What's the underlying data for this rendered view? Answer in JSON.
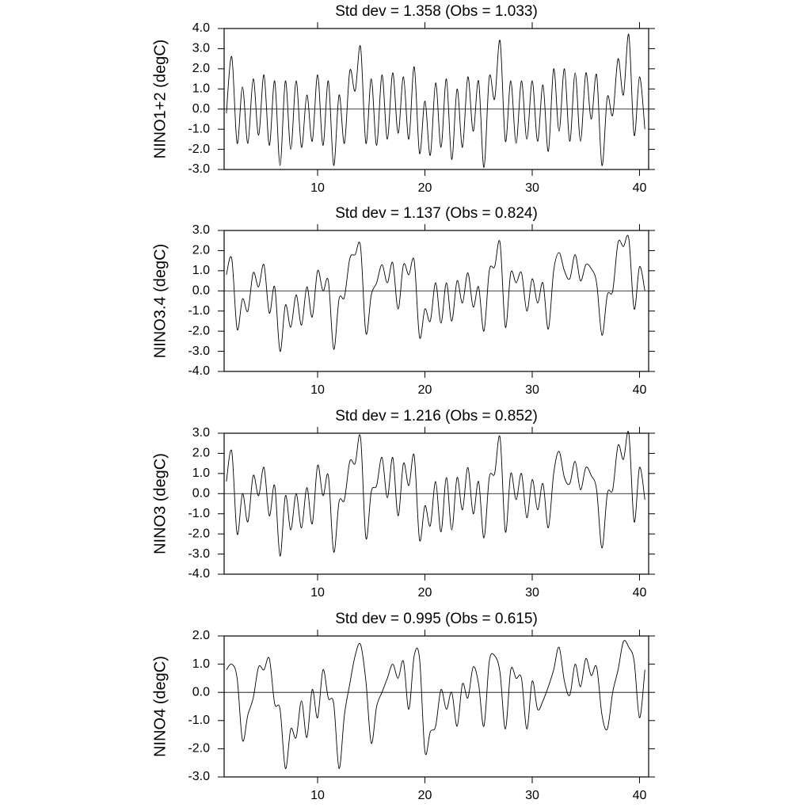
{
  "chart_data": [
    {
      "type": "line",
      "title": "Std dev = 1.358 (Obs = 1.033)",
      "y_label": "NINO1+2 (degC)",
      "color": "#000000",
      "x": [
        1.5,
        2,
        2.5,
        3,
        3.5,
        4,
        4.5,
        5,
        5.5,
        6,
        6.5,
        7,
        7.5,
        8,
        8.5,
        9,
        9.5,
        10,
        10.5,
        11,
        11.5,
        12,
        12.5,
        13,
        13.5,
        14,
        14.5,
        15,
        15.5,
        16,
        16.5,
        17,
        17.5,
        18,
        18.5,
        19,
        19.5,
        20,
        20.5,
        21,
        21.5,
        22,
        22.5,
        23,
        23.5,
        24,
        24.5,
        25,
        25.5,
        26,
        26.5,
        27,
        27.5,
        28,
        28.5,
        29,
        29.5,
        30,
        30.5,
        31,
        31.5,
        32,
        32.5,
        33,
        33.5,
        34,
        34.5,
        35,
        35.5,
        36,
        36.5,
        37,
        37.5,
        38,
        38.5,
        39,
        39.5,
        40,
        40.5
      ],
      "values": [
        -0.2,
        2.6,
        -1.7,
        1.1,
        -1.7,
        1.5,
        -1.3,
        1.7,
        -1.8,
        1.4,
        -2.8,
        1.4,
        -2.0,
        1.4,
        -1.9,
        0.7,
        -1.6,
        1.7,
        -1.8,
        1.4,
        -2.8,
        0.7,
        -1.7,
        1.9,
        0.9,
        3.1,
        -1.7,
        1.5,
        -1.8,
        1.7,
        -1.5,
        1.8,
        -1.2,
        1.6,
        -1.5,
        2.1,
        -2.2,
        0.4,
        -2.3,
        1.3,
        -1.9,
        1.5,
        -2.5,
        1.0,
        -1.9,
        1.6,
        -1.1,
        1.4,
        -2.9,
        1.6,
        0.5,
        3.4,
        -1.6,
        1.4,
        -1.7,
        1.4,
        -1.5,
        1.4,
        -1.6,
        1.2,
        -2.1,
        2.0,
        -1.1,
        2.0,
        -1.6,
        1.8,
        -1.6,
        1.8,
        -0.5,
        1.7,
        -2.8,
        0.6,
        -0.3,
        2.5,
        0.7,
        3.7,
        -1.3,
        1.6,
        -1.0
      ],
      "xlim": [
        1.29,
        40.85
      ],
      "xticks": [
        10,
        20,
        30,
        40
      ],
      "ylim": [
        -3,
        4
      ],
      "yticks": [
        {
          "value": 4,
          "label": "4.0"
        },
        {
          "value": 3,
          "label": "3.0"
        },
        {
          "value": 2,
          "label": "2.0"
        },
        {
          "value": 1,
          "label": "1.0"
        },
        {
          "value": 0,
          "label": "0.0"
        },
        {
          "value": -1,
          "label": "-1.0"
        },
        {
          "value": -2,
          "label": "-2.0"
        },
        {
          "value": -3,
          "label": "-3.0"
        }
      ],
      "reference_line": 0
    },
    {
      "type": "line",
      "title": "Std dev = 1.137 (Obs = 0.824)",
      "y_label": "NINO3.4 (degC)",
      "color": "#000000",
      "x": [
        1.5,
        2,
        2.5,
        3,
        3.5,
        4,
        4.5,
        5,
        5.5,
        6,
        6.5,
        7,
        7.5,
        8,
        8.5,
        9,
        9.5,
        10,
        10.5,
        11,
        11.5,
        12,
        12.5,
        13,
        13.5,
        14,
        14.5,
        15,
        15.5,
        16,
        16.5,
        17,
        17.5,
        18,
        18.5,
        19,
        19.5,
        20,
        20.5,
        21,
        21.5,
        22,
        22.5,
        23,
        23.5,
        24,
        24.5,
        25,
        25.5,
        26,
        26.5,
        27,
        27.5,
        28,
        28.5,
        29,
        29.5,
        30,
        30.5,
        31,
        31.5,
        32,
        32.5,
        33,
        33.5,
        34,
        34.5,
        35,
        35.5,
        36,
        36.5,
        37,
        37.5,
        38,
        38.5,
        39,
        39.5,
        40,
        40.5
      ],
      "values": [
        0.8,
        1.6,
        -1.9,
        -0.4,
        -1.0,
        0.9,
        0.2,
        1.3,
        -1.1,
        0.2,
        -3.0,
        -0.7,
        -1.8,
        -0.2,
        -1.7,
        0.2,
        -1.3,
        1.0,
        0.0,
        0.5,
        -2.9,
        -0.4,
        -0.3,
        1.6,
        1.8,
        2.2,
        -2.1,
        -0.2,
        0.4,
        1.3,
        0.4,
        1.4,
        -0.9,
        1.3,
        0.8,
        1.5,
        -2.3,
        -0.9,
        -1.5,
        0.4,
        -1.6,
        0.4,
        -1.5,
        0.5,
        -0.6,
        0.9,
        -0.8,
        0.2,
        -2.0,
        1.0,
        1.2,
        2.4,
        -1.8,
        0.9,
        0.4,
        0.9,
        -1.0,
        0.6,
        -0.6,
        0.4,
        -1.9,
        1.0,
        1.9,
        1.0,
        0.6,
        1.8,
        0.5,
        1.3,
        1.1,
        0.4,
        -2.2,
        -0.2,
        0.0,
        2.4,
        2.2,
        2.6,
        -0.9,
        1.2,
        0.0
      ],
      "xlim": [
        1.29,
        40.85
      ],
      "xticks": [
        10,
        20,
        30,
        40
      ],
      "ylim": [
        -4,
        3
      ],
      "yticks": [
        {
          "value": 3,
          "label": "3.0"
        },
        {
          "value": 2,
          "label": "2.0"
        },
        {
          "value": 1,
          "label": "1.0"
        },
        {
          "value": 0,
          "label": "0.0"
        },
        {
          "value": -1,
          "label": "-1.0"
        },
        {
          "value": -2,
          "label": "-2.0"
        },
        {
          "value": -3,
          "label": "-3.0"
        },
        {
          "value": -4,
          "label": "-4.0"
        }
      ],
      "reference_line": 0
    },
    {
      "type": "line",
      "title": "Std dev = 1.216 (Obs = 0.852)",
      "y_label": "NINO3 (degC)",
      "color": "#000000",
      "x": [
        1.5,
        2,
        2.5,
        3,
        3.5,
        4,
        4.5,
        5,
        5.5,
        6,
        6.5,
        7,
        7.5,
        8,
        8.5,
        9,
        9.5,
        10,
        10.5,
        11,
        11.5,
        12,
        12.5,
        13,
        13.5,
        14,
        14.5,
        15,
        15.5,
        16,
        16.5,
        17,
        17.5,
        18,
        18.5,
        19,
        19.5,
        20,
        20.5,
        21,
        21.5,
        22,
        22.5,
        23,
        23.5,
        24,
        24.5,
        25,
        25.5,
        26,
        26.5,
        27,
        27.5,
        28,
        28.5,
        29,
        29.5,
        30,
        30.5,
        31,
        31.5,
        32,
        32.5,
        33,
        33.5,
        34,
        34.5,
        35,
        35.5,
        36,
        36.5,
        37,
        37.5,
        38,
        38.5,
        39,
        39.5,
        40,
        40.5
      ],
      "values": [
        0.6,
        2.1,
        -2.0,
        0.0,
        -1.4,
        0.9,
        -0.1,
        1.3,
        -1.1,
        0.4,
        -3.1,
        -0.1,
        -1.8,
        0.0,
        -1.7,
        0.3,
        -1.5,
        1.4,
        -0.1,
        0.9,
        -2.9,
        -0.4,
        -0.3,
        1.6,
        1.5,
        2.8,
        -2.2,
        0.1,
        0.4,
        1.8,
        -0.2,
        1.8,
        -1.1,
        1.5,
        0.4,
        1.9,
        -2.3,
        -0.6,
        -1.6,
        0.6,
        -1.9,
        0.8,
        -1.8,
        0.8,
        -0.8,
        1.3,
        -1.0,
        0.6,
        -2.2,
        0.8,
        1.0,
        2.8,
        -1.9,
        1.0,
        -0.3,
        1.0,
        -1.2,
        0.7,
        -0.8,
        0.5,
        -1.7,
        1.0,
        2.1,
        0.8,
        0.5,
        1.6,
        0.2,
        1.3,
        0.9,
        0.2,
        -2.7,
        0.0,
        0.2,
        2.4,
        1.7,
        3.0,
        -1.4,
        1.3,
        -0.3
      ],
      "xlim": [
        1.29,
        40.85
      ],
      "xticks": [
        10,
        20,
        30,
        40
      ],
      "ylim": [
        -4,
        3
      ],
      "yticks": [
        {
          "value": 3,
          "label": "3.0"
        },
        {
          "value": 2,
          "label": "2.0"
        },
        {
          "value": 1,
          "label": "1.0"
        },
        {
          "value": 0,
          "label": "0.0"
        },
        {
          "value": -1,
          "label": "-1.0"
        },
        {
          "value": -2,
          "label": "-2.0"
        },
        {
          "value": -3,
          "label": "-3.0"
        },
        {
          "value": -4,
          "label": "-4.0"
        }
      ],
      "reference_line": 0
    },
    {
      "type": "line",
      "title": "Std dev = 0.995 (Obs = 0.615)",
      "y_label": "NINO4 (degC)",
      "color": "#000000",
      "x": [
        1.5,
        2,
        2.5,
        3,
        3.5,
        4,
        4.5,
        5,
        5.5,
        6,
        6.5,
        7,
        7.5,
        8,
        8.5,
        9,
        9.5,
        10,
        10.5,
        11,
        11.5,
        12,
        12.5,
        13,
        13.5,
        14,
        14.5,
        15,
        15.5,
        16,
        16.5,
        17,
        17.5,
        18,
        18.5,
        19,
        19.5,
        20,
        20.5,
        21,
        21.5,
        22,
        22.5,
        23,
        23.5,
        24,
        24.5,
        25,
        25.5,
        26,
        26.5,
        27,
        27.5,
        28,
        28.5,
        29,
        29.5,
        30,
        30.5,
        31,
        31.5,
        32,
        32.5,
        33,
        33.5,
        34,
        34.5,
        35,
        35.5,
        36,
        36.5,
        37,
        37.5,
        38,
        38.5,
        39,
        39.5,
        40,
        40.5
      ],
      "values": [
        0.8,
        1.0,
        0.5,
        -1.7,
        -0.8,
        -0.2,
        0.9,
        0.8,
        1.2,
        -0.4,
        -0.6,
        -2.7,
        -1.3,
        -1.6,
        -0.3,
        -1.6,
        0.1,
        -0.9,
        0.8,
        -0.2,
        -0.4,
        -2.7,
        -0.8,
        0.3,
        1.3,
        1.7,
        0.4,
        -1.8,
        -0.5,
        0.0,
        0.5,
        1.0,
        0.5,
        1.1,
        -0.6,
        1.3,
        1.2,
        -2.1,
        -1.4,
        -1.2,
        0.1,
        -0.6,
        0.0,
        -1.2,
        0.3,
        -0.2,
        0.9,
        0.3,
        -1.2,
        1.1,
        1.3,
        0.7,
        -1.3,
        0.8,
        0.5,
        0.5,
        -1.3,
        0.4,
        -0.6,
        -0.3,
        0.2,
        0.8,
        1.6,
        0.4,
        -0.1,
        1.0,
        0.2,
        1.2,
        0.6,
        0.9,
        -0.8,
        -1.3,
        0.0,
        0.8,
        1.8,
        1.6,
        1.1,
        -0.9,
        0.8
      ],
      "xlim": [
        1.29,
        40.85
      ],
      "xticks": [
        10,
        20,
        30,
        40
      ],
      "ylim": [
        -3,
        2
      ],
      "yticks": [
        {
          "value": 2,
          "label": "2.0"
        },
        {
          "value": 1,
          "label": "1.0"
        },
        {
          "value": 0,
          "label": "0.0"
        },
        {
          "value": -1,
          "label": "-1.0"
        },
        {
          "value": -2,
          "label": "-2.0"
        },
        {
          "value": -3,
          "label": "-3.0"
        }
      ],
      "reference_line": 0
    }
  ]
}
